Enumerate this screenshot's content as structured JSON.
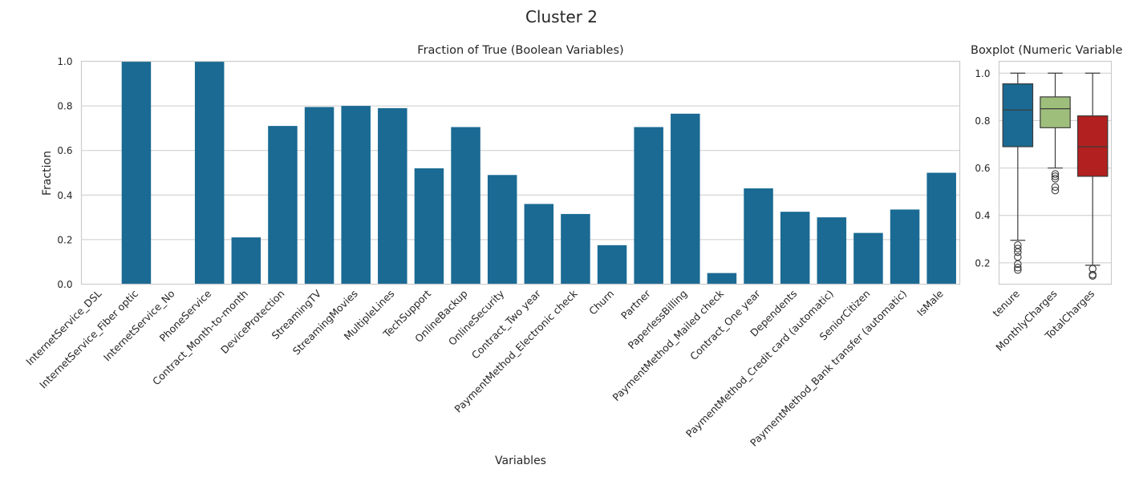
{
  "figure_title": "Cluster 2",
  "chart_data": [
    {
      "type": "bar",
      "title": "Fraction of True (Boolean Variables)",
      "xlabel": "Variables",
      "ylabel": "Fraction",
      "ylim": [
        0,
        1
      ],
      "yticks": [
        "0.0",
        "0.2",
        "0.4",
        "0.6",
        "0.8",
        "1.0"
      ],
      "grid": true,
      "bar_color": "#1a6a93",
      "categories": [
        "InternetService_DSL",
        "InternetService_Fiber optic",
        "InternetService_No",
        "PhoneService",
        "Contract_Month-to-month",
        "DeviceProtection",
        "StreamingTV",
        "StreamingMovies",
        "MultipleLines",
        "TechSupport",
        "OnlineBackup",
        "OnlineSecurity",
        "Contract_Two year",
        "PaymentMethod_Electronic check",
        "Churn",
        "Partner",
        "PaperlessBilling",
        "PaymentMethod_Mailed check",
        "Contract_One year",
        "Dependents",
        "PaymentMethod_Credit card (automatic)",
        "SeniorCitizen",
        "PaymentMethod_Bank transfer (automatic)",
        "IsMale"
      ],
      "values": [
        0.0,
        1.0,
        0.0,
        1.0,
        0.21,
        0.71,
        0.795,
        0.8,
        0.79,
        0.52,
        0.705,
        0.49,
        0.36,
        0.315,
        0.175,
        0.705,
        0.765,
        0.05,
        0.43,
        0.325,
        0.3,
        0.23,
        0.335,
        0.5
      ]
    },
    {
      "type": "boxplot",
      "title": "Boxplot (Numeric Variables)",
      "ylim": [
        0.11,
        1.05
      ],
      "yticks": [
        "0.2",
        "0.4",
        "0.6",
        "0.8",
        "1.0"
      ],
      "grid": true,
      "categories": [
        "tenure",
        "MonthlyCharges",
        "TotalCharges"
      ],
      "series": [
        {
          "color": "#1a6a93",
          "whisker_low": 0.295,
          "q1": 0.69,
          "median": 0.845,
          "q3": 0.955,
          "whisker_high": 1.0,
          "outliers": [
            0.275,
            0.26,
            0.245,
            0.225,
            0.195,
            0.18,
            0.17
          ]
        },
        {
          "color": "#9ebf7c",
          "whisker_low": 0.6,
          "q1": 0.77,
          "median": 0.85,
          "q3": 0.9,
          "whisker_high": 1.0,
          "outliers": [
            0.575,
            0.565,
            0.555,
            0.52,
            0.505
          ]
        },
        {
          "color": "#b2201f",
          "whisker_low": 0.19,
          "q1": 0.565,
          "median": 0.69,
          "q3": 0.82,
          "whisker_high": 1.0,
          "outliers": [
            0.175,
            0.15,
            0.145
          ]
        }
      ]
    }
  ]
}
